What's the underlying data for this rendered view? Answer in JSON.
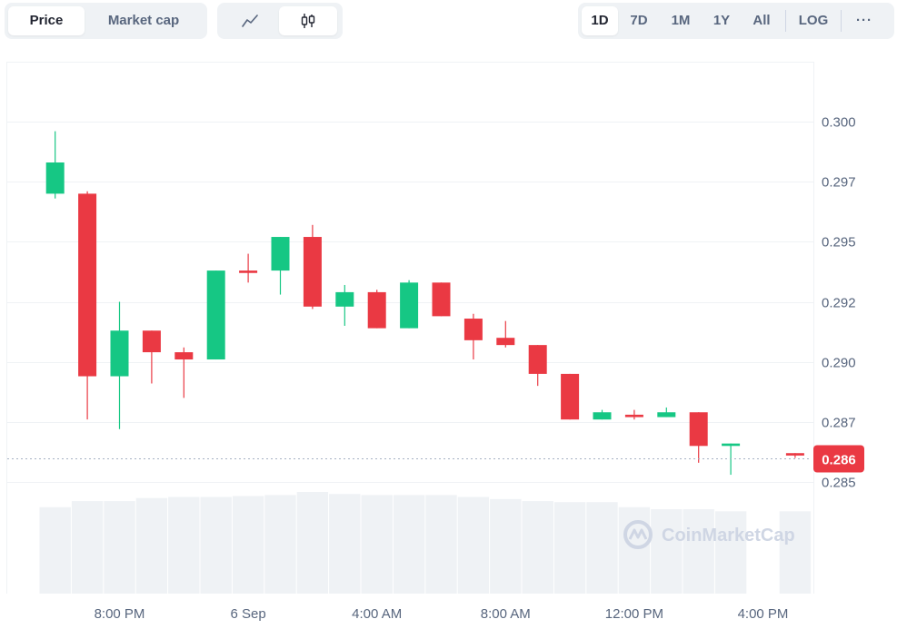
{
  "tabs": {
    "price": "Price",
    "market_cap": "Market cap"
  },
  "chart_type_buttons": {
    "line": "line-chart-icon",
    "candle": "candlestick-icon"
  },
  "ranges": [
    "1D",
    "7D",
    "1M",
    "1Y",
    "All"
  ],
  "active_range": "1D",
  "log_label": "LOG",
  "more_label": "···",
  "watermark": "CoinMarketCap",
  "colors": {
    "up": "#16c784",
    "down": "#ea3943",
    "grid": "#eff2f5",
    "volume": "#eff2f5",
    "axis_text": "#58667e",
    "current_price_bg": "#ea3943",
    "current_price_line": "#a6b0c3"
  },
  "chart_data": {
    "type": "candlestick",
    "y_ticks": [
      "0.300",
      "0.297",
      "0.295",
      "0.292",
      "0.290",
      "0.287",
      "0.285"
    ],
    "y_tick_values": [
      0.3,
      0.2975,
      0.295,
      0.2925,
      0.29,
      0.2875,
      0.285
    ],
    "x_ticks": [
      "8:00 PM",
      "6 Sep",
      "4:00 AM",
      "8:00 AM",
      "12:00 PM",
      "4:00 PM"
    ],
    "x_tick_positions": [
      2.5,
      6.5,
      10.5,
      14.5,
      18.5,
      22.5
    ],
    "current_price": 0.286,
    "current_price_label": "0.286",
    "candles": [
      {
        "o": 0.297,
        "h": 0.2996,
        "l": 0.2968,
        "c": 0.2983
      },
      {
        "o": 0.297,
        "h": 0.2971,
        "l": 0.2876,
        "c": 0.2894
      },
      {
        "o": 0.2894,
        "h": 0.2925,
        "l": 0.2872,
        "c": 0.2913
      },
      {
        "o": 0.2913,
        "h": 0.2913,
        "l": 0.2891,
        "c": 0.2904
      },
      {
        "o": 0.2904,
        "h": 0.2906,
        "l": 0.2885,
        "c": 0.2901
      },
      {
        "o": 0.2901,
        "h": 0.2938,
        "l": 0.2901,
        "c": 0.2938
      },
      {
        "o": 0.2938,
        "h": 0.2945,
        "l": 0.2933,
        "c": 0.2937
      },
      {
        "o": 0.2938,
        "h": 0.2952,
        "l": 0.2928,
        "c": 0.2952
      },
      {
        "o": 0.2952,
        "h": 0.2957,
        "l": 0.2922,
        "c": 0.2923
      },
      {
        "o": 0.2923,
        "h": 0.2932,
        "l": 0.2915,
        "c": 0.2929
      },
      {
        "o": 0.2929,
        "h": 0.293,
        "l": 0.2914,
        "c": 0.2914
      },
      {
        "o": 0.2914,
        "h": 0.2934,
        "l": 0.2914,
        "c": 0.2933
      },
      {
        "o": 0.2933,
        "h": 0.2933,
        "l": 0.2919,
        "c": 0.2919
      },
      {
        "o": 0.2918,
        "h": 0.292,
        "l": 0.2901,
        "c": 0.2909
      },
      {
        "o": 0.291,
        "h": 0.2917,
        "l": 0.2906,
        "c": 0.2907
      },
      {
        "o": 0.2907,
        "h": 0.2907,
        "l": 0.289,
        "c": 0.2895
      },
      {
        "o": 0.2895,
        "h": 0.2895,
        "l": 0.2876,
        "c": 0.2876
      },
      {
        "o": 0.2876,
        "h": 0.288,
        "l": 0.2876,
        "c": 0.2879
      },
      {
        "o": 0.2878,
        "h": 0.288,
        "l": 0.2876,
        "c": 0.2877
      },
      {
        "o": 0.2877,
        "h": 0.2881,
        "l": 0.2877,
        "c": 0.2879
      },
      {
        "o": 0.2879,
        "h": 0.2879,
        "l": 0.2858,
        "c": 0.2865
      },
      {
        "o": 0.2865,
        "h": 0.2866,
        "l": 0.2853,
        "c": 0.2866
      },
      null,
      {
        "o": 0.2862,
        "h": 0.2862,
        "l": 0.286,
        "c": 0.2861
      }
    ],
    "volume_relative": [
      0.85,
      0.91,
      0.91,
      0.94,
      0.95,
      0.95,
      0.96,
      0.97,
      1.0,
      0.98,
      0.97,
      0.97,
      0.97,
      0.95,
      0.93,
      0.91,
      0.9,
      0.9,
      0.85,
      0.83,
      0.83,
      0.81,
      0,
      0.81
    ]
  }
}
